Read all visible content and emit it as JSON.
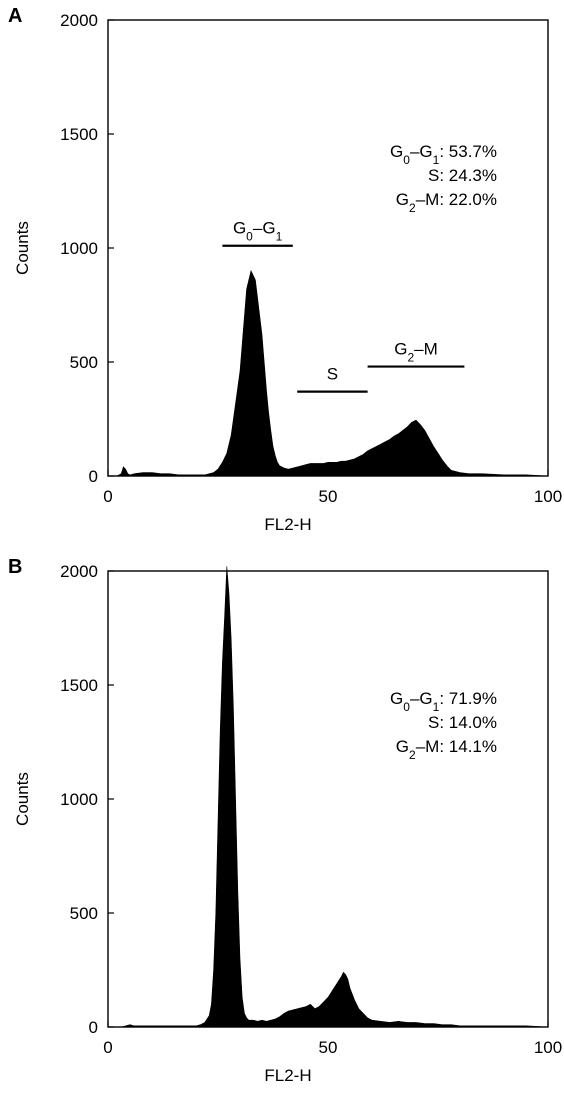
{
  "chart_data": [
    {
      "type": "histogram",
      "panel_label": "A",
      "title": "",
      "xlabel": "FL2-H",
      "ylabel": "Counts",
      "xlim": [
        0,
        100
      ],
      "ylim": [
        0,
        2000
      ],
      "xticks": [
        0,
        50,
        100
      ],
      "xtick_labels": [
        "0",
        "50",
        "100"
      ],
      "yticks": [
        0,
        500,
        1000,
        1500,
        2000
      ],
      "ytick_labels": [
        "0",
        "500",
        "1000",
        "1500",
        "2000"
      ],
      "grid": false,
      "fill_color": "#000000",
      "series": [
        {
          "x": [
            0,
            2,
            3,
            3.5,
            4,
            4.5,
            5,
            6,
            8,
            10,
            12,
            14,
            16,
            18,
            20,
            22,
            24,
            25,
            26,
            27,
            28,
            29,
            30,
            30.5,
            31,
            31.5,
            32,
            32.5,
            33,
            33.5,
            34,
            34.5,
            35,
            35.5,
            36,
            36.5,
            37,
            37.5,
            38,
            38.5,
            39,
            40,
            41,
            42,
            43,
            44,
            45,
            46,
            47,
            48,
            49,
            50,
            51,
            52,
            53,
            54,
            55,
            56,
            57,
            58,
            59,
            60,
            61,
            62,
            63,
            64,
            65,
            66,
            67,
            68,
            69,
            70,
            71,
            72,
            73,
            74,
            75,
            76,
            77,
            78,
            80,
            82,
            85,
            90,
            95,
            100
          ],
          "y": [
            0,
            0,
            10,
            40,
            30,
            10,
            5,
            10,
            15,
            15,
            10,
            10,
            5,
            5,
            5,
            5,
            15,
            30,
            60,
            100,
            180,
            320,
            460,
            580,
            700,
            820,
            860,
            900,
            880,
            860,
            780,
            700,
            620,
            500,
            380,
            280,
            200,
            130,
            90,
            60,
            45,
            35,
            30,
            35,
            40,
            45,
            50,
            55,
            55,
            55,
            55,
            60,
            60,
            60,
            65,
            65,
            70,
            75,
            85,
            95,
            110,
            120,
            130,
            140,
            150,
            160,
            175,
            185,
            200,
            215,
            235,
            245,
            225,
            200,
            165,
            130,
            100,
            70,
            45,
            25,
            15,
            10,
            10,
            5,
            5,
            0
          ]
        }
      ],
      "annotations": {
        "stats": [
          {
            "label": "G",
            "sub": "0",
            "sep": "–",
            "label2": "G",
            "sub2": "1",
            "value": ": 53.7%"
          },
          {
            "label": "",
            "sub": "",
            "sep": "",
            "label2": "S",
            "sub2": "",
            "value": ": 24.3%"
          },
          {
            "label": "G",
            "sub": "2",
            "sep": "–",
            "label2": "M",
            "sub2": "",
            "value": ": 22.0%"
          }
        ],
        "gates": [
          {
            "label": "G",
            "sub": "0",
            "sep": "–",
            "label2": "G",
            "sub2": "1",
            "x_start": 26,
            "x_end": 42,
            "y": 1010
          },
          {
            "label": "S",
            "sub": "",
            "sep": "",
            "label2": "",
            "sub2": "",
            "x_start": 43,
            "x_end": 59,
            "y": 370
          },
          {
            "label": "G",
            "sub": "2",
            "sep": "–",
            "label2": "M",
            "sub2": "",
            "x_start": 59,
            "x_end": 81,
            "y": 480
          }
        ]
      }
    },
    {
      "type": "histogram",
      "panel_label": "B",
      "title": "",
      "xlabel": "FL2-H",
      "ylabel": "Counts",
      "xlim": [
        0,
        100
      ],
      "ylim": [
        0,
        2000
      ],
      "xticks": [
        0,
        50,
        100
      ],
      "xtick_labels": [
        "0",
        "50",
        "100"
      ],
      "yticks": [
        0,
        500,
        1000,
        1500,
        2000
      ],
      "ytick_labels": [
        "0",
        "500",
        "1000",
        "1500",
        "2000"
      ],
      "grid": false,
      "fill_color": "#000000",
      "series": [
        {
          "x": [
            0,
            3,
            4,
            5,
            6,
            8,
            10,
            12,
            14,
            16,
            18,
            20,
            21,
            22,
            23,
            23.5,
            24,
            24.5,
            25,
            25.5,
            26,
            26.5,
            27,
            27.5,
            28,
            28.5,
            29,
            29.5,
            30,
            30.5,
            31,
            31.5,
            32,
            33,
            34,
            35,
            36,
            37,
            38,
            39,
            40,
            41,
            42,
            43,
            44,
            45,
            45.5,
            46,
            46.5,
            47,
            48,
            49,
            50,
            51,
            52,
            53,
            53.5,
            54,
            54.5,
            55,
            56,
            57,
            58,
            59,
            60,
            62,
            64,
            66,
            68,
            70,
            72,
            74,
            76,
            78,
            80,
            82,
            85,
            90,
            95,
            100
          ],
          "y": [
            0,
            0,
            5,
            10,
            5,
            5,
            5,
            5,
            5,
            5,
            5,
            5,
            10,
            20,
            50,
            100,
            250,
            500,
            900,
            1300,
            1600,
            1800,
            2020,
            1900,
            1700,
            1400,
            1000,
            600,
            300,
            130,
            60,
            40,
            30,
            30,
            25,
            30,
            25,
            30,
            35,
            45,
            60,
            70,
            75,
            80,
            85,
            90,
            95,
            100,
            90,
            80,
            90,
            110,
            130,
            160,
            190,
            220,
            240,
            230,
            210,
            170,
            120,
            80,
            60,
            40,
            30,
            25,
            20,
            25,
            20,
            20,
            15,
            15,
            10,
            10,
            5,
            5,
            5,
            5,
            5,
            0
          ]
        }
      ],
      "annotations": {
        "stats": [
          {
            "label": "G",
            "sub": "0",
            "sep": "–",
            "label2": "G",
            "sub2": "1",
            "value": ": 71.9%"
          },
          {
            "label": "",
            "sub": "",
            "sep": "",
            "label2": "S",
            "sub2": "",
            "value": ": 14.0%"
          },
          {
            "label": "G",
            "sub": "2",
            "sep": "–",
            "label2": "M",
            "sub2": "",
            "value": ": 14.1%"
          }
        ],
        "gates": []
      }
    }
  ]
}
